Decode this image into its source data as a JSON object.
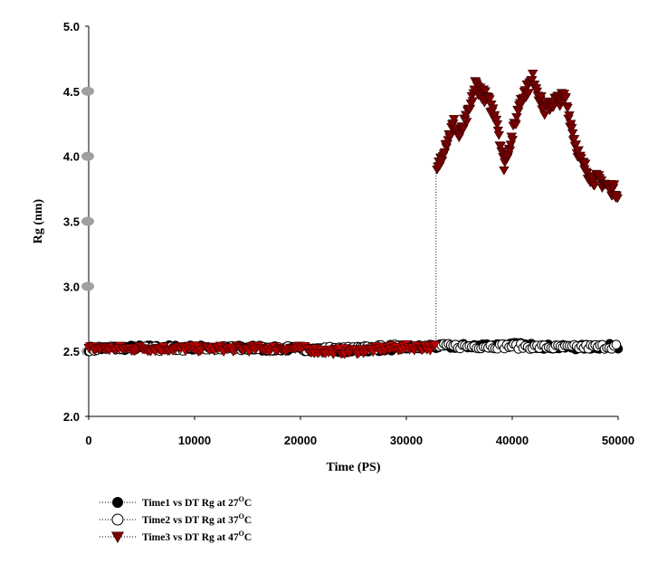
{
  "chart_data": {
    "type": "scatter",
    "xlabel": "Time (PS)",
    "ylabel": "Rg (nm)",
    "xlim": [
      0,
      50000
    ],
    "ylim": [
      2.0,
      5.0
    ],
    "x_ticks": [
      "0",
      "10000",
      "20000",
      "30000",
      "40000",
      "50000"
    ],
    "y_ticks": [
      "2.0",
      "2.5",
      "3.0",
      "3.5",
      "4.0",
      "4.5",
      "5.0"
    ],
    "grid": false,
    "legend_position": "bottom-left",
    "series": [
      {
        "name": "Time1 vs DT Rg at  27",
        "unit": "°C",
        "marker": "filled-circle",
        "color": "#000000",
        "x_range": [
          0,
          50000
        ],
        "y_mean": 2.53,
        "points": [
          [
            0,
            2.52
          ],
          [
            5000,
            2.53
          ],
          [
            10000,
            2.53
          ],
          [
            15000,
            2.52
          ],
          [
            20000,
            2.52
          ],
          [
            25000,
            2.51
          ],
          [
            30000,
            2.53
          ],
          [
            35000,
            2.54
          ],
          [
            40000,
            2.55
          ],
          [
            45000,
            2.53
          ],
          [
            50000,
            2.54
          ]
        ]
      },
      {
        "name": "Time2 vs DT Rg at 37",
        "unit": "°C",
        "marker": "open-circle",
        "color": "#000000",
        "x_range": [
          0,
          50000
        ],
        "y_mean": 2.53,
        "points": [
          [
            0,
            2.52
          ],
          [
            5000,
            2.52
          ],
          [
            10000,
            2.52
          ],
          [
            15000,
            2.53
          ],
          [
            20000,
            2.52
          ],
          [
            25000,
            2.52
          ],
          [
            30000,
            2.54
          ],
          [
            35000,
            2.54
          ],
          [
            40000,
            2.54
          ],
          [
            45000,
            2.53
          ],
          [
            50000,
            2.54
          ]
        ]
      },
      {
        "name": "Time3 vs DT Rg at 47",
        "unit": "°C",
        "marker": "filled-triangle-down",
        "color": "#c00000",
        "color_late": "#7a0000",
        "x_range": [
          0,
          50000
        ],
        "jump_x": 32800,
        "points": [
          [
            0,
            2.52
          ],
          [
            5000,
            2.52
          ],
          [
            10000,
            2.52
          ],
          [
            15000,
            2.52
          ],
          [
            20000,
            2.52
          ],
          [
            22000,
            2.5
          ],
          [
            25000,
            2.5
          ],
          [
            30000,
            2.53
          ],
          [
            32700,
            2.53
          ],
          [
            32900,
            3.88
          ],
          [
            33500,
            4.05
          ],
          [
            34500,
            4.25
          ],
          [
            35000,
            4.15
          ],
          [
            36000,
            4.35
          ],
          [
            36500,
            4.55
          ],
          [
            37500,
            4.45
          ],
          [
            38500,
            4.3
          ],
          [
            39200,
            3.93
          ],
          [
            40000,
            4.15
          ],
          [
            40800,
            4.45
          ],
          [
            41500,
            4.52
          ],
          [
            42000,
            4.6
          ],
          [
            43000,
            4.35
          ],
          [
            44000,
            4.42
          ],
          [
            45000,
            4.45
          ],
          [
            45800,
            4.15
          ],
          [
            46500,
            3.95
          ],
          [
            47500,
            3.83
          ],
          [
            48500,
            3.8
          ],
          [
            49300,
            3.75
          ],
          [
            50000,
            3.72
          ]
        ]
      }
    ],
    "legend": [
      {
        "label": "Time1 vs DT Rg at  27",
        "sup": "O",
        "unit": "C"
      },
      {
        "label": "Time2 vs DT Rg at 37",
        "sup": "O",
        "unit": "C"
      },
      {
        "label": "Time3 vs DT Rg at 47",
        "sup": "O",
        "unit": "C"
      }
    ]
  }
}
